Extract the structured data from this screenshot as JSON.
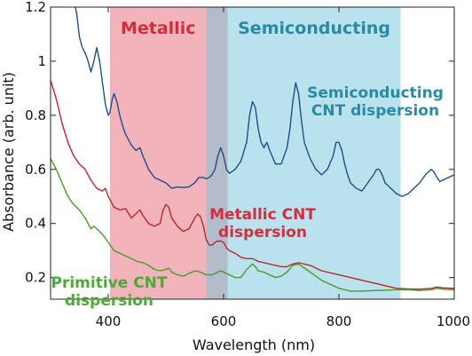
{
  "chart_data": {
    "type": "line",
    "xlabel": "Wavelength (nm)",
    "ylabel": "Absorbance (arb. unit)",
    "xlim": [
      300,
      1000
    ],
    "ylim": [
      0.12,
      1.2
    ],
    "x_ticks": [
      400,
      600,
      800,
      1000
    ],
    "y_ticks": [
      0.2,
      0.4,
      0.6,
      0.8,
      1,
      1.2
    ],
    "x_tick_labels": [
      "400",
      "600",
      "800",
      "1000"
    ],
    "y_tick_labels": [
      "0.2",
      "0.4",
      "0.6",
      "0.8",
      "1",
      "1.2"
    ],
    "grid": false,
    "regions": [
      {
        "label": "Metallic",
        "x_start": 403,
        "x_end": 570,
        "color": "#f2b3ba",
        "text_color": "#d0303c"
      },
      {
        "label": "",
        "x_start": 570,
        "x_end": 607,
        "color": "#b4bccb",
        "text_color": ""
      },
      {
        "label": "Semiconducting",
        "x_start": 607,
        "x_end": 907,
        "color": "#b9e2ec",
        "text_color": "#2a8aa4"
      }
    ],
    "series": [
      {
        "name": "Semiconducting CNT dispersion",
        "label_lines": [
          "Semiconducting",
          "CNT dispersion"
        ],
        "color": "#1f4f86",
        "label_color": "#2a8aa4",
        "points": [
          [
            300,
            1.22
          ],
          [
            310,
            1.22
          ],
          [
            320,
            1.22
          ],
          [
            330,
            1.22
          ],
          [
            340,
            1.22
          ],
          [
            345,
            1.18
          ],
          [
            350,
            1.09
          ],
          [
            355,
            1.05
          ],
          [
            360,
            1.03
          ],
          [
            365,
            1.0
          ],
          [
            370,
            0.96
          ],
          [
            375,
            1.0
          ],
          [
            380,
            1.05
          ],
          [
            385,
            1.0
          ],
          [
            390,
            0.92
          ],
          [
            395,
            0.84
          ],
          [
            400,
            0.8
          ],
          [
            403,
            0.81
          ],
          [
            407,
            0.86
          ],
          [
            410,
            0.88
          ],
          [
            415,
            0.85
          ],
          [
            420,
            0.8
          ],
          [
            425,
            0.76
          ],
          [
            430,
            0.73
          ],
          [
            440,
            0.69
          ],
          [
            448,
            0.67
          ],
          [
            455,
            0.68
          ],
          [
            460,
            0.65
          ],
          [
            470,
            0.6
          ],
          [
            480,
            0.57
          ],
          [
            490,
            0.56
          ],
          [
            500,
            0.55
          ],
          [
            510,
            0.53
          ],
          [
            520,
            0.535
          ],
          [
            530,
            0.533
          ],
          [
            540,
            0.535
          ],
          [
            550,
            0.55
          ],
          [
            557,
            0.57
          ],
          [
            565,
            0.57
          ],
          [
            570,
            0.565
          ],
          [
            575,
            0.57
          ],
          [
            580,
            0.58
          ],
          [
            585,
            0.6
          ],
          [
            590,
            0.65
          ],
          [
            595,
            0.68
          ],
          [
            600,
            0.65
          ],
          [
            605,
            0.6
          ],
          [
            610,
            0.585
          ],
          [
            620,
            0.6
          ],
          [
            630,
            0.63
          ],
          [
            640,
            0.7
          ],
          [
            645,
            0.8
          ],
          [
            650,
            0.85
          ],
          [
            655,
            0.83
          ],
          [
            660,
            0.75
          ],
          [
            665,
            0.7
          ],
          [
            670,
            0.68
          ],
          [
            675,
            0.7
          ],
          [
            680,
            0.67
          ],
          [
            690,
            0.62
          ],
          [
            700,
            0.62
          ],
          [
            710,
            0.68
          ],
          [
            715,
            0.75
          ],
          [
            720,
            0.85
          ],
          [
            725,
            0.92
          ],
          [
            730,
            0.88
          ],
          [
            735,
            0.78
          ],
          [
            740,
            0.7
          ],
          [
            750,
            0.64
          ],
          [
            760,
            0.6
          ],
          [
            770,
            0.58
          ],
          [
            780,
            0.6
          ],
          [
            790,
            0.65
          ],
          [
            795,
            0.7
          ],
          [
            800,
            0.7
          ],
          [
            805,
            0.67
          ],
          [
            810,
            0.62
          ],
          [
            815,
            0.58
          ],
          [
            820,
            0.55
          ],
          [
            830,
            0.53
          ],
          [
            840,
            0.52
          ],
          [
            850,
            0.55
          ],
          [
            860,
            0.58
          ],
          [
            865,
            0.6
          ],
          [
            870,
            0.6
          ],
          [
            875,
            0.58
          ],
          [
            880,
            0.55
          ],
          [
            890,
            0.53
          ],
          [
            900,
            0.51
          ],
          [
            910,
            0.5
          ],
          [
            920,
            0.51
          ],
          [
            930,
            0.53
          ],
          [
            940,
            0.55
          ],
          [
            950,
            0.58
          ],
          [
            960,
            0.6
          ],
          [
            965,
            0.59
          ],
          [
            970,
            0.57
          ],
          [
            975,
            0.555
          ],
          [
            980,
            0.56
          ],
          [
            990,
            0.57
          ],
          [
            1000,
            0.58
          ]
        ]
      },
      {
        "name": "Metallic CNT dispersion",
        "label_lines": [
          "Metallic CNT",
          "dispersion"
        ],
        "color": "#b8282e",
        "label_color": "#d0303c",
        "points": [
          [
            300,
            0.93
          ],
          [
            310,
            0.86
          ],
          [
            320,
            0.77
          ],
          [
            330,
            0.7
          ],
          [
            340,
            0.65
          ],
          [
            350,
            0.62
          ],
          [
            360,
            0.6
          ],
          [
            370,
            0.56
          ],
          [
            380,
            0.53
          ],
          [
            390,
            0.52
          ],
          [
            395,
            0.53
          ],
          [
            400,
            0.5
          ],
          [
            410,
            0.46
          ],
          [
            420,
            0.45
          ],
          [
            430,
            0.455
          ],
          [
            440,
            0.42
          ],
          [
            450,
            0.44
          ],
          [
            455,
            0.45
          ],
          [
            460,
            0.43
          ],
          [
            470,
            0.4
          ],
          [
            480,
            0.39
          ],
          [
            490,
            0.4
          ],
          [
            495,
            0.45
          ],
          [
            500,
            0.47
          ],
          [
            505,
            0.46
          ],
          [
            510,
            0.42
          ],
          [
            520,
            0.39
          ],
          [
            530,
            0.37
          ],
          [
            540,
            0.38
          ],
          [
            550,
            0.42
          ],
          [
            555,
            0.435
          ],
          [
            560,
            0.425
          ],
          [
            565,
            0.39
          ],
          [
            570,
            0.34
          ],
          [
            575,
            0.32
          ],
          [
            580,
            0.32
          ],
          [
            585,
            0.33
          ],
          [
            590,
            0.335
          ],
          [
            595,
            0.335
          ],
          [
            600,
            0.33
          ],
          [
            605,
            0.31
          ],
          [
            610,
            0.3
          ],
          [
            620,
            0.29
          ],
          [
            630,
            0.275
          ],
          [
            640,
            0.27
          ],
          [
            650,
            0.27
          ],
          [
            660,
            0.26
          ],
          [
            670,
            0.255
          ],
          [
            680,
            0.25
          ],
          [
            690,
            0.245
          ],
          [
            700,
            0.24
          ],
          [
            710,
            0.24
          ],
          [
            720,
            0.25
          ],
          [
            730,
            0.255
          ],
          [
            740,
            0.25
          ],
          [
            750,
            0.245
          ],
          [
            760,
            0.235
          ],
          [
            770,
            0.225
          ],
          [
            780,
            0.22
          ],
          [
            790,
            0.215
          ],
          [
            800,
            0.21
          ],
          [
            810,
            0.205
          ],
          [
            820,
            0.2
          ],
          [
            830,
            0.195
          ],
          [
            840,
            0.19
          ],
          [
            850,
            0.185
          ],
          [
            860,
            0.18
          ],
          [
            870,
            0.175
          ],
          [
            880,
            0.17
          ],
          [
            890,
            0.165
          ],
          [
            900,
            0.16
          ],
          [
            920,
            0.158
          ],
          [
            940,
            0.157
          ],
          [
            960,
            0.16
          ],
          [
            970,
            0.165
          ],
          [
            980,
            0.162
          ],
          [
            1000,
            0.16
          ]
        ]
      },
      {
        "name": "Primitive CNT dispersion",
        "label_lines": [
          "Primitive CNT",
          "dispersion"
        ],
        "color": "#4a9a2c",
        "label_color": "#4ea83a",
        "points": [
          [
            300,
            0.64
          ],
          [
            310,
            0.6
          ],
          [
            320,
            0.55
          ],
          [
            330,
            0.5
          ],
          [
            340,
            0.47
          ],
          [
            350,
            0.45
          ],
          [
            360,
            0.42
          ],
          [
            370,
            0.38
          ],
          [
            375,
            0.39
          ],
          [
            380,
            0.38
          ],
          [
            390,
            0.36
          ],
          [
            400,
            0.33
          ],
          [
            410,
            0.3
          ],
          [
            420,
            0.29
          ],
          [
            430,
            0.28
          ],
          [
            440,
            0.27
          ],
          [
            450,
            0.26
          ],
          [
            460,
            0.255
          ],
          [
            470,
            0.245
          ],
          [
            480,
            0.23
          ],
          [
            490,
            0.225
          ],
          [
            500,
            0.23
          ],
          [
            505,
            0.235
          ],
          [
            510,
            0.22
          ],
          [
            520,
            0.21
          ],
          [
            530,
            0.205
          ],
          [
            540,
            0.215
          ],
          [
            550,
            0.225
          ],
          [
            560,
            0.22
          ],
          [
            570,
            0.21
          ],
          [
            580,
            0.21
          ],
          [
            590,
            0.22
          ],
          [
            595,
            0.225
          ],
          [
            600,
            0.22
          ],
          [
            610,
            0.21
          ],
          [
            620,
            0.2
          ],
          [
            630,
            0.2
          ],
          [
            640,
            0.23
          ],
          [
            650,
            0.25
          ],
          [
            655,
            0.24
          ],
          [
            660,
            0.225
          ],
          [
            670,
            0.22
          ],
          [
            680,
            0.21
          ],
          [
            690,
            0.2
          ],
          [
            700,
            0.205
          ],
          [
            710,
            0.22
          ],
          [
            720,
            0.245
          ],
          [
            730,
            0.25
          ],
          [
            740,
            0.235
          ],
          [
            750,
            0.22
          ],
          [
            760,
            0.205
          ],
          [
            770,
            0.19
          ],
          [
            780,
            0.18
          ],
          [
            790,
            0.17
          ],
          [
            800,
            0.16
          ],
          [
            810,
            0.155
          ],
          [
            820,
            0.15
          ],
          [
            840,
            0.15
          ],
          [
            860,
            0.152
          ],
          [
            880,
            0.153
          ],
          [
            900,
            0.155
          ],
          [
            920,
            0.155
          ],
          [
            940,
            0.152
          ],
          [
            960,
            0.155
          ],
          [
            970,
            0.16
          ],
          [
            980,
            0.157
          ],
          [
            1000,
            0.155
          ]
        ]
      }
    ]
  }
}
